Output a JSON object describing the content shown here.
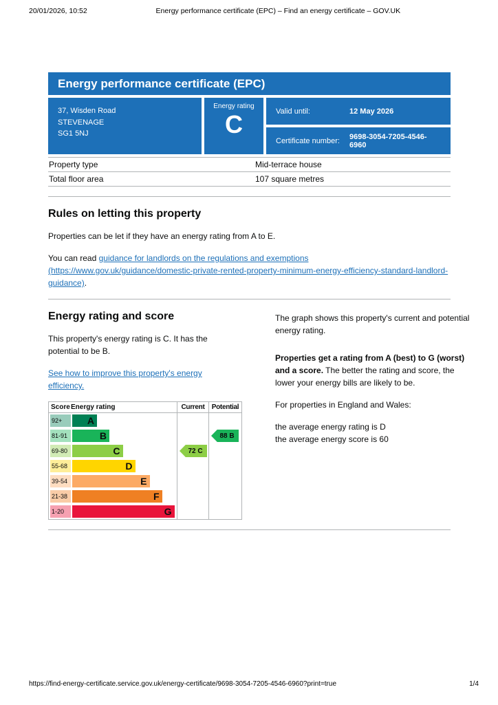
{
  "print_header": {
    "datetime": "20/01/2026, 10:52",
    "title": "Energy performance certificate (EPC) – Find an energy certificate – GOV.UK"
  },
  "header": {
    "title": "Energy performance certificate (EPC)",
    "address_line1": "37, Wisden Road",
    "address_line2": "STEVENAGE",
    "address_line3": "SG1 5NJ",
    "energy_rating_label": "Energy rating",
    "energy_rating_value": "C",
    "valid_until_label": "Valid until:",
    "valid_until_value": "12 May 2026",
    "certificate_number_label": "Certificate number:",
    "certificate_number_value": "9698-3054-7205-4546-6960",
    "brand_blue": "#1d70b8"
  },
  "property_table": {
    "rows": [
      {
        "label": "Property type",
        "value": "Mid-terrace house"
      },
      {
        "label": "Total floor area",
        "value": "107 square metres"
      }
    ]
  },
  "letting": {
    "heading": "Rules on letting this property",
    "para1": "Properties can be let if they have an energy rating from A to E.",
    "para2_prefix": "You can read ",
    "para2_link": "guidance for landlords on the regulations and exemptions (https://www.gov.uk/guidance/domestic-private-rented-property-minimum-energy-efficiency-standard-landlord-guidance)",
    "para2_suffix": "."
  },
  "rating_section": {
    "heading": "Energy rating and score",
    "para1": "This property's energy rating is C. It has the potential to be B.",
    "improve_link": "See how to improve this property's energy efficiency.",
    "right_para1": "The graph shows this property's current and potential energy rating.",
    "right_para2_bold": "Properties get a rating from A (best) to G (worst) and a score.",
    "right_para2_rest": " The better the rating and score, the lower your energy bills are likely to be.",
    "right_para3": "For properties in England and Wales:",
    "right_para4_line1": "the average energy rating is D",
    "right_para4_line2": "the average energy score is 60"
  },
  "chart_data": {
    "type": "bar",
    "title": "Energy rating and score",
    "headers": {
      "score": "Score",
      "rating": "Energy rating",
      "current": "Current",
      "potential": "Potential"
    },
    "bands": [
      {
        "score": "92+",
        "letter": "A",
        "color": "#008054",
        "width_pct": 24
      },
      {
        "score": "81-91",
        "letter": "B",
        "color": "#19b459",
        "width_pct": 36
      },
      {
        "score": "69-80",
        "letter": "C",
        "color": "#8dce46",
        "width_pct": 49
      },
      {
        "score": "55-68",
        "letter": "D",
        "color": "#ffd500",
        "width_pct": 61
      },
      {
        "score": "39-54",
        "letter": "E",
        "color": "#fcaa65",
        "width_pct": 75
      },
      {
        "score": "21-38",
        "letter": "F",
        "color": "#ef8023",
        "width_pct": 87
      },
      {
        "score": "1-20",
        "letter": "G",
        "color": "#e9153b",
        "width_pct": 99
      }
    ],
    "current": {
      "label": "72 C",
      "score": 72,
      "letter": "C",
      "color": "#8dce46",
      "band_index": 2
    },
    "potential": {
      "label": "88 B",
      "score": 88,
      "letter": "B",
      "color": "#19b459",
      "band_index": 1
    }
  },
  "print_footer": {
    "url": "https://find-energy-certificate.service.gov.uk/energy-certificate/9698-3054-7205-4546-6960?print=true",
    "page": "1/4"
  }
}
